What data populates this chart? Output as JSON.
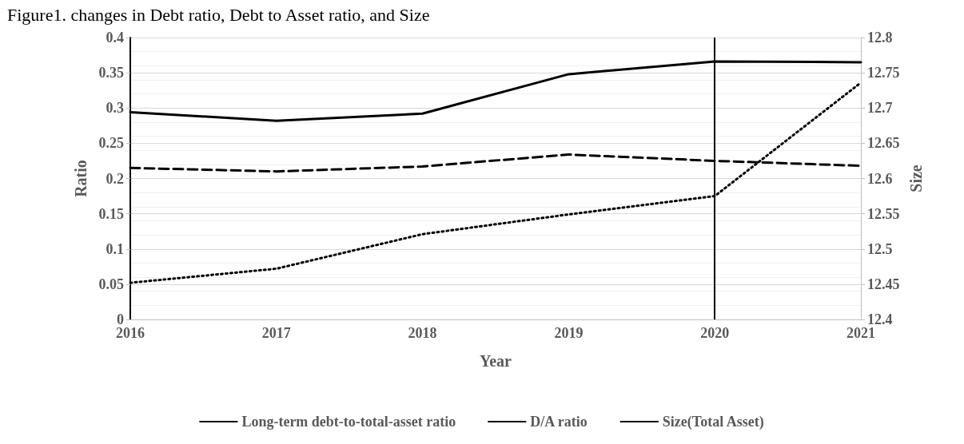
{
  "chart_data": {
    "type": "line",
    "title": "Figure1. changes in Debt ratio, Debt to Asset ratio, and Size",
    "xlabel": "Year",
    "ylabel": "Ratio",
    "y2label": "Size",
    "categories": [
      "2016",
      "2017",
      "2018",
      "2019",
      "2020",
      "2021"
    ],
    "series": [
      {
        "name": "Long-term debt-to-total-asset ratio",
        "color": "#000000",
        "line_style": "solid",
        "values": [
          0.294,
          0.282,
          0.292,
          0.348,
          0.366,
          0.365
        ]
      },
      {
        "name": "D/A ratio",
        "color": "#000000",
        "line_style": "dashed",
        "values": [
          0.215,
          0.21,
          0.217,
          0.234,
          0.225,
          0.218
        ]
      },
      {
        "name": "Size(Total Asset)",
        "color": "#000000",
        "line_style": "dotted",
        "axis": "y2",
        "values": [
          12.452,
          12.472,
          12.521,
          12.549,
          12.575,
          12.736
        ]
      }
    ],
    "ylim": [
      0,
      0.4
    ],
    "yticks": [
      0,
      0.05,
      0.1,
      0.15,
      0.2,
      0.25,
      0.3,
      0.35,
      0.4
    ],
    "y2lim": [
      12.4,
      12.8
    ],
    "y2ticks": [
      12.4,
      12.45,
      12.5,
      12.55,
      12.6,
      12.65,
      12.7,
      12.75,
      12.8
    ],
    "ref_lines": [
      {
        "axis": "x",
        "value": "2020",
        "color": "#000000"
      }
    ],
    "grid": "y",
    "legend": "bottom",
    "marker": "none"
  }
}
